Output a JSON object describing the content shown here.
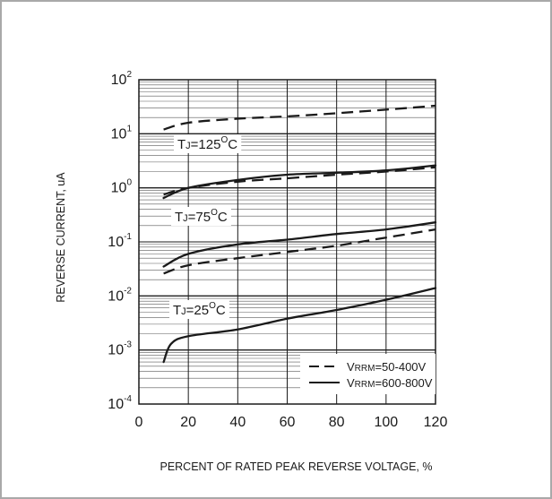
{
  "chart_data": {
    "type": "line",
    "x_axis": {
      "label": "PERCENT OF RATED PEAK REVERSE VOLTAGE, %",
      "range": [
        0,
        120
      ],
      "ticks": [
        0,
        20,
        40,
        60,
        80,
        100,
        120
      ],
      "tick_labels": [
        "0",
        "20",
        "40",
        "60",
        "80",
        "100",
        "120"
      ]
    },
    "y_axis": {
      "label": "REVERSE CURRENT, uA",
      "scale": "log",
      "range": [
        0.0001,
        100
      ],
      "ticks": [
        {
          "base": "10",
          "exp": "2"
        },
        {
          "base": "10",
          "exp": "1"
        },
        {
          "base": "10",
          "exp": "0"
        },
        {
          "base": "10",
          "exp": "-1"
        },
        {
          "base": "10",
          "exp": "-2"
        },
        {
          "base": "10",
          "exp": "-3"
        },
        {
          "base": "10",
          "exp": "-4"
        }
      ]
    },
    "grid": true,
    "curve_labels": [
      {
        "text": "TJ=125°C",
        "for_temperature": 125
      },
      {
        "text": "TJ=75°C",
        "for_temperature": 75
      },
      {
        "text": "TJ=25°C",
        "for_temperature": 25
      }
    ],
    "legend": {
      "placement": "bottom-right",
      "entries": [
        {
          "text": "VRRM=50-400V",
          "style": "dashed"
        },
        {
          "text": "VRRM=600-800V",
          "style": "solid"
        }
      ]
    },
    "series": [
      {
        "name": "VRRM=50-400V",
        "temperature": 125,
        "style": "dashed",
        "x": [
          10,
          20,
          40,
          60,
          80,
          100,
          120
        ],
        "y": [
          12,
          16,
          19,
          21,
          24,
          28,
          33
        ]
      },
      {
        "name": "VRRM=50-400V",
        "temperature": 75,
        "style": "dashed",
        "x": [
          10,
          20,
          40,
          60,
          80,
          100,
          120
        ],
        "y": [
          0.75,
          1.0,
          1.3,
          1.5,
          1.75,
          2.0,
          2.4
        ]
      },
      {
        "name": "VRRM=600-800V",
        "temperature": 75,
        "style": "solid",
        "x": [
          10,
          20,
          40,
          60,
          80,
          100,
          120
        ],
        "y": [
          0.65,
          1.0,
          1.4,
          1.75,
          1.9,
          2.1,
          2.6
        ]
      },
      {
        "name": "VRRM=50-400V",
        "temperature": 25,
        "style": "dashed",
        "x": [
          10,
          20,
          40,
          60,
          80,
          100,
          120
        ],
        "y": [
          0.026,
          0.037,
          0.05,
          0.065,
          0.085,
          0.12,
          0.17
        ]
      },
      {
        "name": "VRRM=600-800V",
        "temperature": 25,
        "style": "solid",
        "x": [
          10,
          20,
          40,
          60,
          80,
          100,
          120
        ],
        "y": [
          0.035,
          0.06,
          0.09,
          0.11,
          0.14,
          0.17,
          0.23
        ]
      },
      {
        "name": "VRRM=600-800V",
        "temperature": 25,
        "style": "solid",
        "x": [
          10,
          13,
          20,
          40,
          60,
          80,
          100,
          120
        ],
        "y": [
          0.0006,
          0.0013,
          0.0018,
          0.0024,
          0.0038,
          0.0055,
          0.0085,
          0.014
        ]
      }
    ]
  }
}
